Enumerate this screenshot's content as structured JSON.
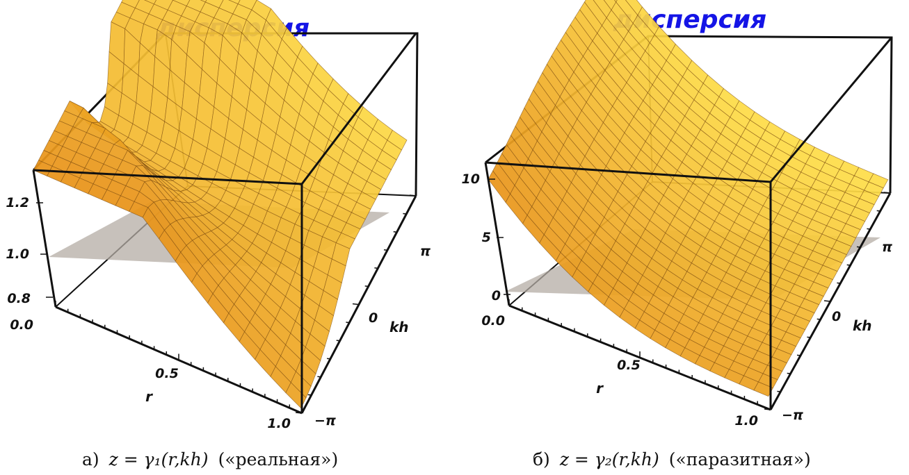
{
  "chart_data": [
    {
      "type": "surface3d",
      "title": "дисперсия",
      "xlabel": "r",
      "ylabel": "kh",
      "x_ticks": [
        "0.0",
        "0.5",
        "1.0"
      ],
      "y_ticks": [
        "−π",
        "0",
        "π"
      ],
      "z_ticks": [
        "0.8",
        "1.0",
        "1.2"
      ],
      "xlim": [
        0,
        1
      ],
      "ylim": [
        -3.1416,
        3.1416
      ],
      "zlim": [
        0.78,
        1.32
      ],
      "reference_plane_z": 1.0,
      "surface": "real branch: grows toward r = 0 and toward kh = ±π, dips below 1 near r = 1, kh ≈ −π",
      "caption": {
        "label": "а)",
        "formula": "z = γ₁(r,kh)",
        "note": "(«реальная»)"
      }
    },
    {
      "type": "surface3d",
      "title": "дисперсия",
      "xlabel": "r",
      "ylabel": "kh",
      "x_ticks": [
        "0.0",
        "0.5",
        "1.0"
      ],
      "y_ticks": [
        "−π",
        "0",
        "π"
      ],
      "z_ticks": [
        "0",
        "5",
        "10"
      ],
      "xlim": [
        0,
        1
      ],
      "ylim": [
        -3.1416,
        3.1416
      ],
      "zlim": [
        -2,
        14
      ],
      "reference_plane_z": 1.0,
      "surface": "spurious branch: large values near r = 0, decays toward 0 as r → 1",
      "caption": {
        "label": "б)",
        "formula": "z = γ₂(r,kh)",
        "note": "(«паразитная»)"
      }
    }
  ],
  "colors": {
    "surface_dark": "#e07808",
    "surface_light": "#ffe04a",
    "mesh": "#7a4a10",
    "plane": "#b4aca4",
    "box": "#111111",
    "title": "#1414e6"
  }
}
